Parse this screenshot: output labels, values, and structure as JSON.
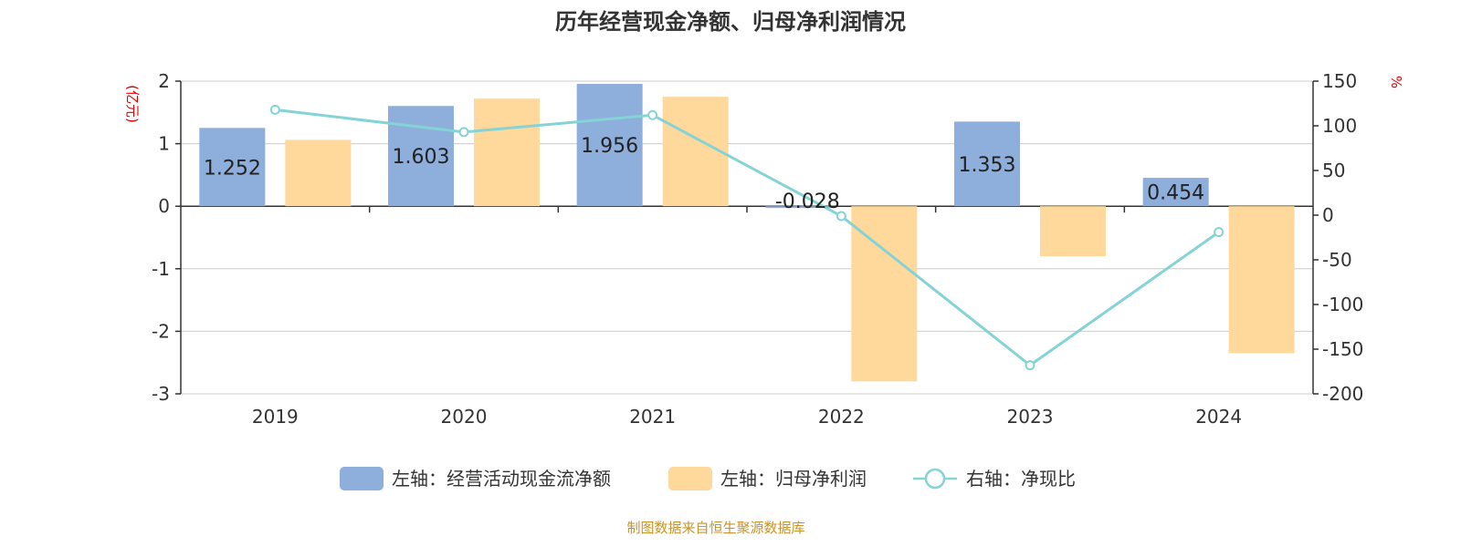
{
  "chart_data": {
    "type": "bar",
    "title": "历年经营现金净额、归母净利润情况",
    "categories": [
      "2019",
      "2020",
      "2021",
      "2022",
      "2023",
      "2024"
    ],
    "left_axis": {
      "unit": "(亿元)",
      "ylim": [
        -3,
        2
      ],
      "ticks": [
        "2",
        "1",
        "0",
        "-1",
        "-2",
        "-3"
      ]
    },
    "right_axis": {
      "unit": "%",
      "ylim": [
        -200,
        150
      ],
      "ticks": [
        "150",
        "100",
        "50",
        "0",
        "-50",
        "-100",
        "-150",
        "-200"
      ]
    },
    "series": [
      {
        "name": "左轴：经营活动现金流净额",
        "axis": "left",
        "kind": "bar",
        "color": "#8eaedb",
        "values": [
          1.252,
          1.603,
          1.956,
          -0.028,
          1.353,
          0.454
        ],
        "labels": [
          "1.252",
          "1.603",
          "1.956",
          "-0.028",
          "1.353",
          "0.454"
        ]
      },
      {
        "name": "左轴：归母净利润",
        "axis": "left",
        "kind": "bar",
        "color": "#ffd89b",
        "values": [
          1.06,
          1.72,
          1.75,
          -2.8,
          -0.8,
          -2.35
        ]
      },
      {
        "name": "右轴：净现比",
        "axis": "right",
        "kind": "line",
        "color": "#84d3d6",
        "values": [
          118,
          93,
          112,
          -1,
          -168,
          -19
        ]
      }
    ],
    "grid": true,
    "legend_position": "bottom"
  },
  "source": "制图数据来自恒生聚源数据库"
}
